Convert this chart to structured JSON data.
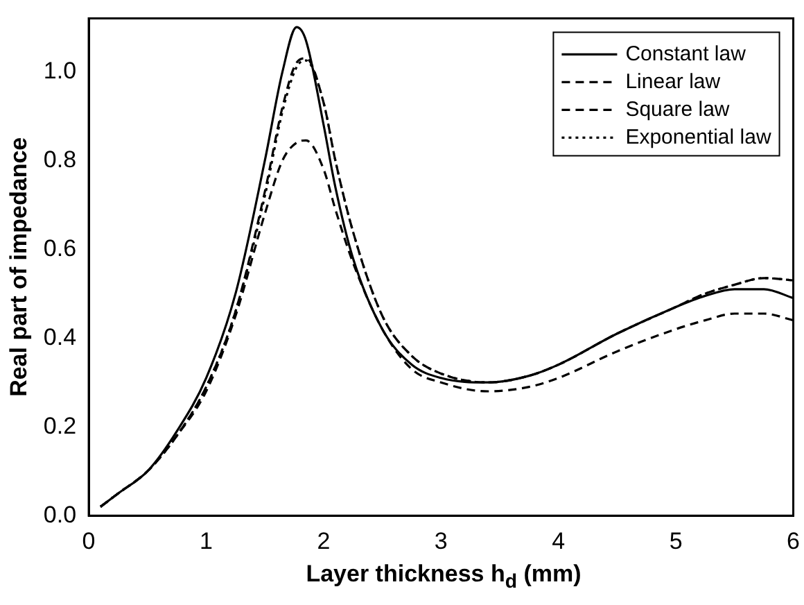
{
  "chart_data": {
    "type": "line",
    "xlabel": "Layer thickness h$_{d}$ (mm)",
    "ylabel": "Real part of impedance",
    "xlim": [
      0,
      6
    ],
    "xticks": [
      0,
      1,
      2,
      3,
      4,
      5,
      6
    ],
    "ylim": [
      0,
      1.12
    ],
    "yticks": [
      {
        "value": 0,
        "label": "0.0"
      },
      0.2,
      0.4,
      0.6,
      0.8,
      {
        "value": 1,
        "label": "1.0"
      }
    ],
    "grid": false,
    "legend": "top right",
    "marker": "none",
    "x": [
      0.1,
      0.25,
      0.5,
      0.75,
      1,
      1.25,
      1.5,
      1.65,
      1.77,
      1.85,
      2,
      2.1,
      2.25,
      2.5,
      2.75,
      3,
      3.4,
      3.75,
      4,
      4.5,
      5,
      5.25,
      5.5,
      5.75,
      6
    ],
    "series": [
      {
        "name": "Constant law",
        "color": "#000000",
        "line_style": "solid",
        "values": [
          0.02,
          0.05,
          0.1,
          0.19,
          0.31,
          0.5,
          0.8,
          1.0,
          1.1,
          1.07,
          0.88,
          0.74,
          0.58,
          0.42,
          0.34,
          0.31,
          0.3,
          0.315,
          0.34,
          0.41,
          0.47,
          0.495,
          0.51,
          0.51,
          0.49
        ]
      },
      {
        "name": "Linear law",
        "color": "#000000",
        "line_style": "dashed",
        "values": [
          0.02,
          0.05,
          0.1,
          0.18,
          0.28,
          0.45,
          0.68,
          0.8,
          0.84,
          0.845,
          0.78,
          0.69,
          0.57,
          0.42,
          0.33,
          0.3,
          0.28,
          0.29,
          0.31,
          0.37,
          0.42,
          0.44,
          0.455,
          0.455,
          0.44
        ]
      },
      {
        "name": "Square law",
        "color": "#000000",
        "line_style": "dashed",
        "values": [
          0.02,
          0.05,
          0.1,
          0.18,
          0.29,
          0.46,
          0.73,
          0.92,
          1.02,
          1.03,
          0.93,
          0.8,
          0.64,
          0.45,
          0.36,
          0.32,
          0.3,
          0.315,
          0.34,
          0.41,
          0.47,
          0.5,
          0.52,
          0.535,
          0.53
        ]
      },
      {
        "name": "Exponential law",
        "color": "#000000",
        "line_style": "dotted",
        "values": [
          0.02,
          0.05,
          0.1,
          0.18,
          0.29,
          0.46,
          0.72,
          0.91,
          1.01,
          1.025,
          0.93,
          0.8,
          0.64,
          0.45,
          0.36,
          0.32,
          0.3,
          0.315,
          0.34,
          0.41,
          0.47,
          0.5,
          0.52,
          0.535,
          0.53
        ]
      }
    ]
  }
}
